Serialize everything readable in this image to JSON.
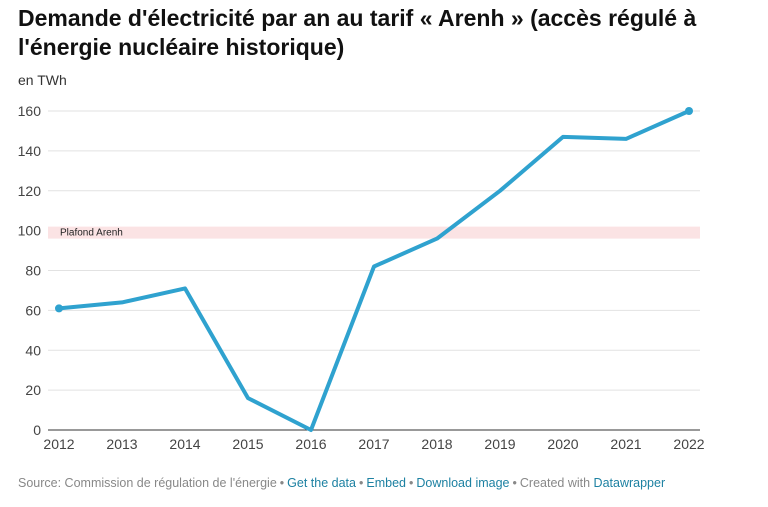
{
  "chart_data": {
    "type": "line",
    "title": "Demande d'électricité par an au tarif « Arenh » (accès régulé à l'énergie nucléaire historique)",
    "unit_label": "en TWh",
    "x": [
      "2012",
      "2013",
      "2014",
      "2015",
      "2016",
      "2017",
      "2018",
      "2019",
      "2020",
      "2021",
      "2022"
    ],
    "series": [
      {
        "values": [
          61,
          64,
          71,
          16,
          0,
          82,
          96,
          120,
          147,
          146,
          160
        ],
        "color": "#2fa2cf"
      }
    ],
    "ylim": [
      0,
      160
    ],
    "yticks": [
      0,
      20,
      40,
      60,
      80,
      100,
      120,
      140,
      160
    ],
    "grid": true,
    "band": {
      "label": "Plafond Arenh",
      "from": 96,
      "to": 102,
      "color": "#fbe3e4"
    }
  },
  "footer": {
    "source": "Source: Commission de régulation de l'énergie",
    "links": [
      "Get the data",
      "Embed",
      "Download image"
    ],
    "created_with": "Created with",
    "brand": "Datawrapper"
  }
}
